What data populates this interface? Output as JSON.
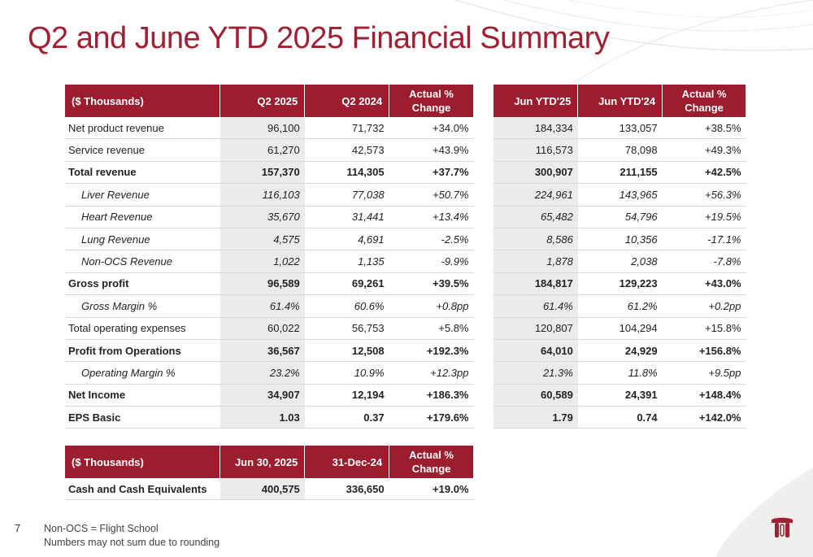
{
  "title": "Q2 and June YTD 2025 Financial Summary",
  "page_number": "7",
  "footnotes": [
    "Non-OCS = Flight School",
    "Numbers may not sum due to rounding"
  ],
  "colors": {
    "accent": "#9b1d2e",
    "shade": "#ecebe9"
  },
  "logo": "company-logo-icon",
  "main_table": {
    "headers": [
      "($ Thousands)",
      "Q2 2025",
      "Q2 2024",
      "Actual % Change"
    ],
    "rows": [
      {
        "label": "Net product revenue",
        "style": "normal",
        "values": [
          "96,100",
          "71,732",
          "+34.0%"
        ]
      },
      {
        "label": "Service revenue",
        "style": "normal",
        "values": [
          "61,270",
          "42,573",
          "+43.9%"
        ]
      },
      {
        "label": "Total revenue",
        "style": "bold",
        "values": [
          "157,370",
          "114,305",
          "+37.7%"
        ]
      },
      {
        "label": "Liver Revenue",
        "style": "italic",
        "values": [
          "116,103",
          "77,038",
          "+50.7%"
        ]
      },
      {
        "label": "Heart Revenue",
        "style": "italic",
        "values": [
          "35,670",
          "31,441",
          "+13.4%"
        ]
      },
      {
        "label": "Lung Revenue",
        "style": "italic",
        "values": [
          "4,575",
          "4,691",
          "-2.5%"
        ]
      },
      {
        "label": "Non-OCS Revenue",
        "style": "italic",
        "values": [
          "1,022",
          "1,135",
          "-9.9%"
        ]
      },
      {
        "label": "Gross profit",
        "style": "bold",
        "values": [
          "96,589",
          "69,261",
          "+39.5%"
        ]
      },
      {
        "label": "Gross Margin %",
        "style": "italic",
        "values": [
          "61.4%",
          "60.6%",
          "+0.8pp"
        ]
      },
      {
        "label": "Total operating expenses",
        "style": "normal",
        "values": [
          "60,022",
          "56,753",
          "+5.8%"
        ]
      },
      {
        "label": "Profit from Operations",
        "style": "bold",
        "values": [
          "36,567",
          "12,508",
          "+192.3%"
        ]
      },
      {
        "label": "Operating Margin %",
        "style": "italic",
        "values": [
          "23.2%",
          "10.9%",
          "+12.3pp"
        ]
      },
      {
        "label": "Net Income",
        "style": "bold",
        "values": [
          "34,907",
          "12,194",
          "+186.3%"
        ]
      },
      {
        "label": "EPS Basic",
        "style": "bold",
        "values": [
          "1.03",
          "0.37",
          "+179.6%"
        ]
      }
    ]
  },
  "ytd_table": {
    "headers": [
      "Jun YTD'25",
      "Jun YTD'24",
      "Actual % Change"
    ],
    "rows": [
      {
        "style": "normal",
        "values": [
          "184,334",
          "133,057",
          "+38.5%"
        ]
      },
      {
        "style": "normal",
        "values": [
          "116,573",
          "78,098",
          "+49.3%"
        ]
      },
      {
        "style": "bold",
        "values": [
          "300,907",
          "211,155",
          "+42.5%"
        ]
      },
      {
        "style": "italic",
        "values": [
          "224,961",
          "143,965",
          "+56.3%"
        ]
      },
      {
        "style": "italic",
        "values": [
          "65,482",
          "54,796",
          "+19.5%"
        ]
      },
      {
        "style": "italic",
        "values": [
          "8,586",
          "10,356",
          "-17.1%"
        ]
      },
      {
        "style": "italic",
        "values": [
          "1,878",
          "2,038",
          "-7.8%"
        ]
      },
      {
        "style": "bold",
        "values": [
          "184,817",
          "129,223",
          "+43.0%"
        ]
      },
      {
        "style": "italic",
        "values": [
          "61.4%",
          "61.2%",
          "+0.2pp"
        ]
      },
      {
        "style": "normal",
        "values": [
          "120,807",
          "104,294",
          "+15.8%"
        ]
      },
      {
        "style": "bold",
        "values": [
          "64,010",
          "24,929",
          "+156.8%"
        ]
      },
      {
        "style": "italic",
        "values": [
          "21.3%",
          "11.8%",
          "+9.5pp"
        ]
      },
      {
        "style": "bold",
        "values": [
          "60,589",
          "24,391",
          "+148.4%"
        ]
      },
      {
        "style": "bold",
        "values": [
          "1.79",
          "0.74",
          "+142.0%"
        ]
      }
    ]
  },
  "cash_table": {
    "headers": [
      "($ Thousands)",
      "Jun 30, 2025",
      "31-Dec-24",
      "Actual % Change"
    ],
    "rows": [
      {
        "label": "Cash and Cash Equivalents",
        "style": "bold",
        "values": [
          "400,575",
          "336,650",
          "+19.0%"
        ]
      }
    ]
  }
}
